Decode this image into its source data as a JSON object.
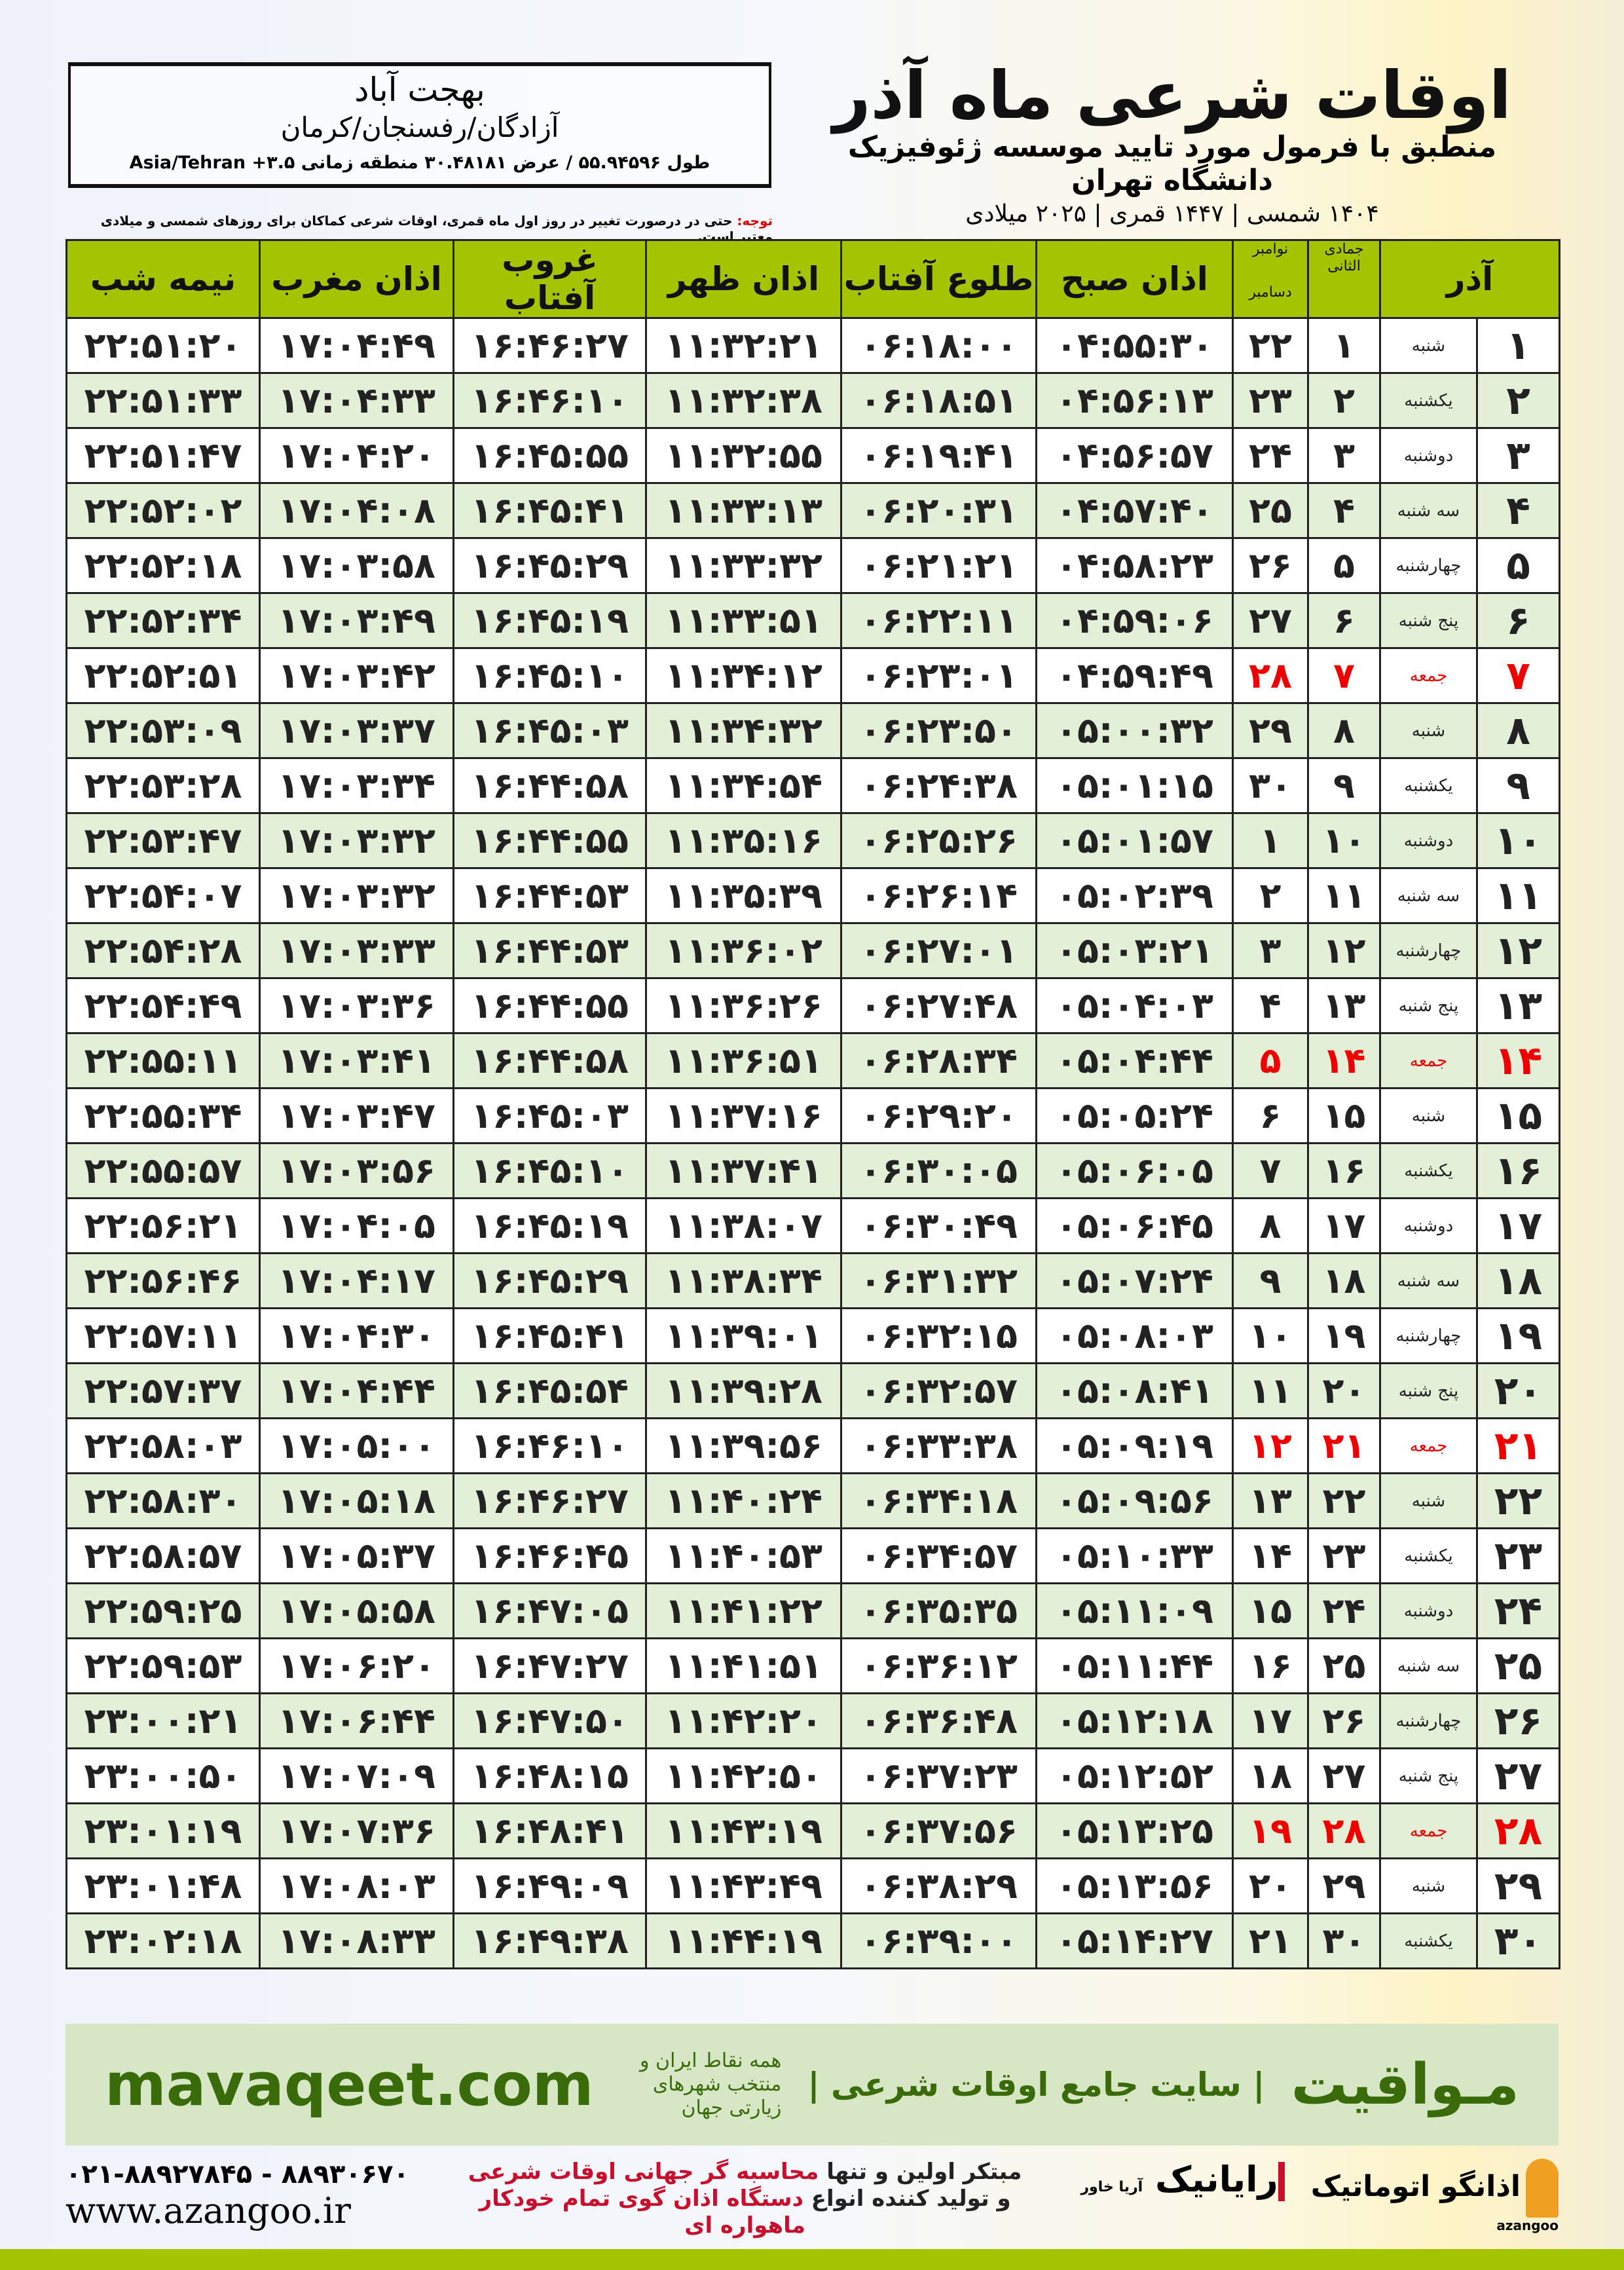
{
  "location": {
    "city": "بهجت آباد",
    "region": "آزادگان/رفسنجان/کرمان",
    "coords": "طول ۵۵.۹۴۵۹۶ / عرض ۳۰.۴۸۱۸۱ منطقه زمانی ۳.۵+ Asia/Tehran"
  },
  "header": {
    "title": "اوقات شرعی ماه آذر",
    "subtitle": "منطبق با فرمول مورد تایید موسسه ژئوفیزیک دانشگاه تهران",
    "dates": "۱۴۰۴ شمسی | ۱۴۴۷ قمری | ۲۰۲۵ میلادی"
  },
  "note": {
    "label": "توجه:",
    "text": " حتی در درصورت تغییر در روز اول ماه قمری، اوقات شرعی کماکان برای روزهای شمسی و میلادی معتبر است."
  },
  "columns": {
    "month": "آذر",
    "qamari": "جمادی الثانی",
    "gregorian_top": "نوامبر",
    "gregorian_bottom": "دسامبر",
    "fajr": "اذان صبح",
    "sunrise": "طلوع آفتاب",
    "dhuhr": "اذان ظهر",
    "sunset": "غروب آفتاب",
    "maghrib": "اذان مغرب",
    "midnight": "نیمه شب"
  },
  "colors": {
    "header_green": "#a4c400",
    "friday_red": "#e00000",
    "brand_green": "#3a6b0a"
  },
  "rows": [
    [
      "۱",
      "شنبه",
      "۱",
      "۲۲",
      "۰۴:۵۵:۳۰",
      "۰۶:۱۸:۰۰",
      "۱۱:۳۲:۲۱",
      "۱۶:۴۶:۲۷",
      "۱۷:۰۴:۴۹",
      "۲۲:۵۱:۲۰"
    ],
    [
      "۲",
      "یکشنبه",
      "۲",
      "۲۳",
      "۰۴:۵۶:۱۳",
      "۰۶:۱۸:۵۱",
      "۱۱:۳۲:۳۸",
      "۱۶:۴۶:۱۰",
      "۱۷:۰۴:۳۳",
      "۲۲:۵۱:۳۳"
    ],
    [
      "۳",
      "دوشنبه",
      "۳",
      "۲۴",
      "۰۴:۵۶:۵۷",
      "۰۶:۱۹:۴۱",
      "۱۱:۳۲:۵۵",
      "۱۶:۴۵:۵۵",
      "۱۷:۰۴:۲۰",
      "۲۲:۵۱:۴۷"
    ],
    [
      "۴",
      "سه شنبه",
      "۴",
      "۲۵",
      "۰۴:۵۷:۴۰",
      "۰۶:۲۰:۳۱",
      "۱۱:۳۳:۱۳",
      "۱۶:۴۵:۴۱",
      "۱۷:۰۴:۰۸",
      "۲۲:۵۲:۰۲"
    ],
    [
      "۵",
      "چهارشنبه",
      "۵",
      "۲۶",
      "۰۴:۵۸:۲۳",
      "۰۶:۲۱:۲۱",
      "۱۱:۳۳:۳۲",
      "۱۶:۴۵:۲۹",
      "۱۷:۰۳:۵۸",
      "۲۲:۵۲:۱۸"
    ],
    [
      "۶",
      "پنج شنبه",
      "۶",
      "۲۷",
      "۰۴:۵۹:۰۶",
      "۰۶:۲۲:۱۱",
      "۱۱:۳۳:۵۱",
      "۱۶:۴۵:۱۹",
      "۱۷:۰۳:۴۹",
      "۲۲:۵۲:۳۴"
    ],
    [
      "۷",
      "جمعه",
      "۷",
      "۲۸",
      "۰۴:۵۹:۴۹",
      "۰۶:۲۳:۰۱",
      "۱۱:۳۴:۱۲",
      "۱۶:۴۵:۱۰",
      "۱۷:۰۳:۴۲",
      "۲۲:۵۲:۵۱"
    ],
    [
      "۸",
      "شنبه",
      "۸",
      "۲۹",
      "۰۵:۰۰:۳۲",
      "۰۶:۲۳:۵۰",
      "۱۱:۳۴:۳۲",
      "۱۶:۴۵:۰۳",
      "۱۷:۰۳:۳۷",
      "۲۲:۵۳:۰۹"
    ],
    [
      "۹",
      "یکشنبه",
      "۹",
      "۳۰",
      "۰۵:۰۱:۱۵",
      "۰۶:۲۴:۳۸",
      "۱۱:۳۴:۵۴",
      "۱۶:۴۴:۵۸",
      "۱۷:۰۳:۳۴",
      "۲۲:۵۳:۲۸"
    ],
    [
      "۱۰",
      "دوشنبه",
      "۱۰",
      "۱",
      "۰۵:۰۱:۵۷",
      "۰۶:۲۵:۲۶",
      "۱۱:۳۵:۱۶",
      "۱۶:۴۴:۵۵",
      "۱۷:۰۳:۳۲",
      "۲۲:۵۳:۴۷"
    ],
    [
      "۱۱",
      "سه شنبه",
      "۱۱",
      "۲",
      "۰۵:۰۲:۳۹",
      "۰۶:۲۶:۱۴",
      "۱۱:۳۵:۳۹",
      "۱۶:۴۴:۵۳",
      "۱۷:۰۳:۳۲",
      "۲۲:۵۴:۰۷"
    ],
    [
      "۱۲",
      "چهارشنبه",
      "۱۲",
      "۳",
      "۰۵:۰۳:۲۱",
      "۰۶:۲۷:۰۱",
      "۱۱:۳۶:۰۲",
      "۱۶:۴۴:۵۳",
      "۱۷:۰۳:۳۳",
      "۲۲:۵۴:۲۸"
    ],
    [
      "۱۳",
      "پنج شنبه",
      "۱۳",
      "۴",
      "۰۵:۰۴:۰۳",
      "۰۶:۲۷:۴۸",
      "۱۱:۳۶:۲۶",
      "۱۶:۴۴:۵۵",
      "۱۷:۰۳:۳۶",
      "۲۲:۵۴:۴۹"
    ],
    [
      "۱۴",
      "جمعه",
      "۱۴",
      "۵",
      "۰۵:۰۴:۴۴",
      "۰۶:۲۸:۳۴",
      "۱۱:۳۶:۵۱",
      "۱۶:۴۴:۵۸",
      "۱۷:۰۳:۴۱",
      "۲۲:۵۵:۱۱"
    ],
    [
      "۱۵",
      "شنبه",
      "۱۵",
      "۶",
      "۰۵:۰۵:۲۴",
      "۰۶:۲۹:۲۰",
      "۱۱:۳۷:۱۶",
      "۱۶:۴۵:۰۳",
      "۱۷:۰۳:۴۷",
      "۲۲:۵۵:۳۴"
    ],
    [
      "۱۶",
      "یکشنبه",
      "۱۶",
      "۷",
      "۰۵:۰۶:۰۵",
      "۰۶:۳۰:۰۵",
      "۱۱:۳۷:۴۱",
      "۱۶:۴۵:۱۰",
      "۱۷:۰۳:۵۶",
      "۲۲:۵۵:۵۷"
    ],
    [
      "۱۷",
      "دوشنبه",
      "۱۷",
      "۸",
      "۰۵:۰۶:۴۵",
      "۰۶:۳۰:۴۹",
      "۱۱:۳۸:۰۷",
      "۱۶:۴۵:۱۹",
      "۱۷:۰۴:۰۵",
      "۲۲:۵۶:۲۱"
    ],
    [
      "۱۸",
      "سه شنبه",
      "۱۸",
      "۹",
      "۰۵:۰۷:۲۴",
      "۰۶:۳۱:۳۲",
      "۱۱:۳۸:۳۴",
      "۱۶:۴۵:۲۹",
      "۱۷:۰۴:۱۷",
      "۲۲:۵۶:۴۶"
    ],
    [
      "۱۹",
      "چهارشنبه",
      "۱۹",
      "۱۰",
      "۰۵:۰۸:۰۳",
      "۰۶:۳۲:۱۵",
      "۱۱:۳۹:۰۱",
      "۱۶:۴۵:۴۱",
      "۱۷:۰۴:۳۰",
      "۲۲:۵۷:۱۱"
    ],
    [
      "۲۰",
      "پنج شنبه",
      "۲۰",
      "۱۱",
      "۰۵:۰۸:۴۱",
      "۰۶:۳۲:۵۷",
      "۱۱:۳۹:۲۸",
      "۱۶:۴۵:۵۴",
      "۱۷:۰۴:۴۴",
      "۲۲:۵۷:۳۷"
    ],
    [
      "۲۱",
      "جمعه",
      "۲۱",
      "۱۲",
      "۰۵:۰۹:۱۹",
      "۰۶:۳۳:۳۸",
      "۱۱:۳۹:۵۶",
      "۱۶:۴۶:۱۰",
      "۱۷:۰۵:۰۰",
      "۲۲:۵۸:۰۳"
    ],
    [
      "۲۲",
      "شنبه",
      "۲۲",
      "۱۳",
      "۰۵:۰۹:۵۶",
      "۰۶:۳۴:۱۸",
      "۱۱:۴۰:۲۴",
      "۱۶:۴۶:۲۷",
      "۱۷:۰۵:۱۸",
      "۲۲:۵۸:۳۰"
    ],
    [
      "۲۳",
      "یکشنبه",
      "۲۳",
      "۱۴",
      "۰۵:۱۰:۳۳",
      "۰۶:۳۴:۵۷",
      "۱۱:۴۰:۵۳",
      "۱۶:۴۶:۴۵",
      "۱۷:۰۵:۳۷",
      "۲۲:۵۸:۵۷"
    ],
    [
      "۲۴",
      "دوشنبه",
      "۲۴",
      "۱۵",
      "۰۵:۱۱:۰۹",
      "۰۶:۳۵:۳۵",
      "۱۱:۴۱:۲۲",
      "۱۶:۴۷:۰۵",
      "۱۷:۰۵:۵۸",
      "۲۲:۵۹:۲۵"
    ],
    [
      "۲۵",
      "سه شنبه",
      "۲۵",
      "۱۶",
      "۰۵:۱۱:۴۴",
      "۰۶:۳۶:۱۲",
      "۱۱:۴۱:۵۱",
      "۱۶:۴۷:۲۷",
      "۱۷:۰۶:۲۰",
      "۲۲:۵۹:۵۳"
    ],
    [
      "۲۶",
      "چهارشنبه",
      "۲۶",
      "۱۷",
      "۰۵:۱۲:۱۸",
      "۰۶:۳۶:۴۸",
      "۱۱:۴۲:۲۰",
      "۱۶:۴۷:۵۰",
      "۱۷:۰۶:۴۴",
      "۲۳:۰۰:۲۱"
    ],
    [
      "۲۷",
      "پنج شنبه",
      "۲۷",
      "۱۸",
      "۰۵:۱۲:۵۲",
      "۰۶:۳۷:۲۳",
      "۱۱:۴۲:۵۰",
      "۱۶:۴۸:۱۵",
      "۱۷:۰۷:۰۹",
      "۲۳:۰۰:۵۰"
    ],
    [
      "۲۸",
      "جمعه",
      "۲۸",
      "۱۹",
      "۰۵:۱۳:۲۵",
      "۰۶:۳۷:۵۶",
      "۱۱:۴۳:۱۹",
      "۱۶:۴۸:۴۱",
      "۱۷:۰۷:۳۶",
      "۲۳:۰۱:۱۹"
    ],
    [
      "۲۹",
      "شنبه",
      "۲۹",
      "۲۰",
      "۰۵:۱۳:۵۶",
      "۰۶:۳۸:۲۹",
      "۱۱:۴۳:۴۹",
      "۱۶:۴۹:۰۹",
      "۱۷:۰۸:۰۳",
      "۲۳:۰۱:۴۸"
    ],
    [
      "۳۰",
      "یکشنبه",
      "۳۰",
      "۲۱",
      "۰۵:۱۴:۲۷",
      "۰۶:۳۹:۰۰",
      "۱۱:۴۴:۱۹",
      "۱۶:۴۹:۳۸",
      "۱۷:۰۸:۳۳",
      "۲۳:۰۲:۱۸"
    ]
  ],
  "friday_label": "جمعه",
  "band": {
    "brand": "مـواقیت",
    "slogan": "| سایت جامع اوقات شرعی |",
    "tagline": "همه نقاط ایران و منتخب شهرهای زیارتی جهان",
    "site": "mavaqeet.com"
  },
  "footer": {
    "phone": "۰۲۱-۸۸۹۲۷۸۴۵ - ۸۸۹۳۰۶۷۰",
    "web": "www.azangoo.ir",
    "line1_a": "مبتکر اولین و تنها ",
    "line1_b": "محاسبه گر جهانی اوقات شرعی",
    "line2_a": "و تولید کننده انواع ",
    "line2_b": "دستگاه اذان گوی تمام خودکار ماهواره ای",
    "logo_rayanik": "رایانیک",
    "logo_rayanik_sub": "آریا خاور",
    "logo_azangoo": "اذانگو اتوماتیک",
    "logo_azangoo_sub": "azangoo"
  }
}
